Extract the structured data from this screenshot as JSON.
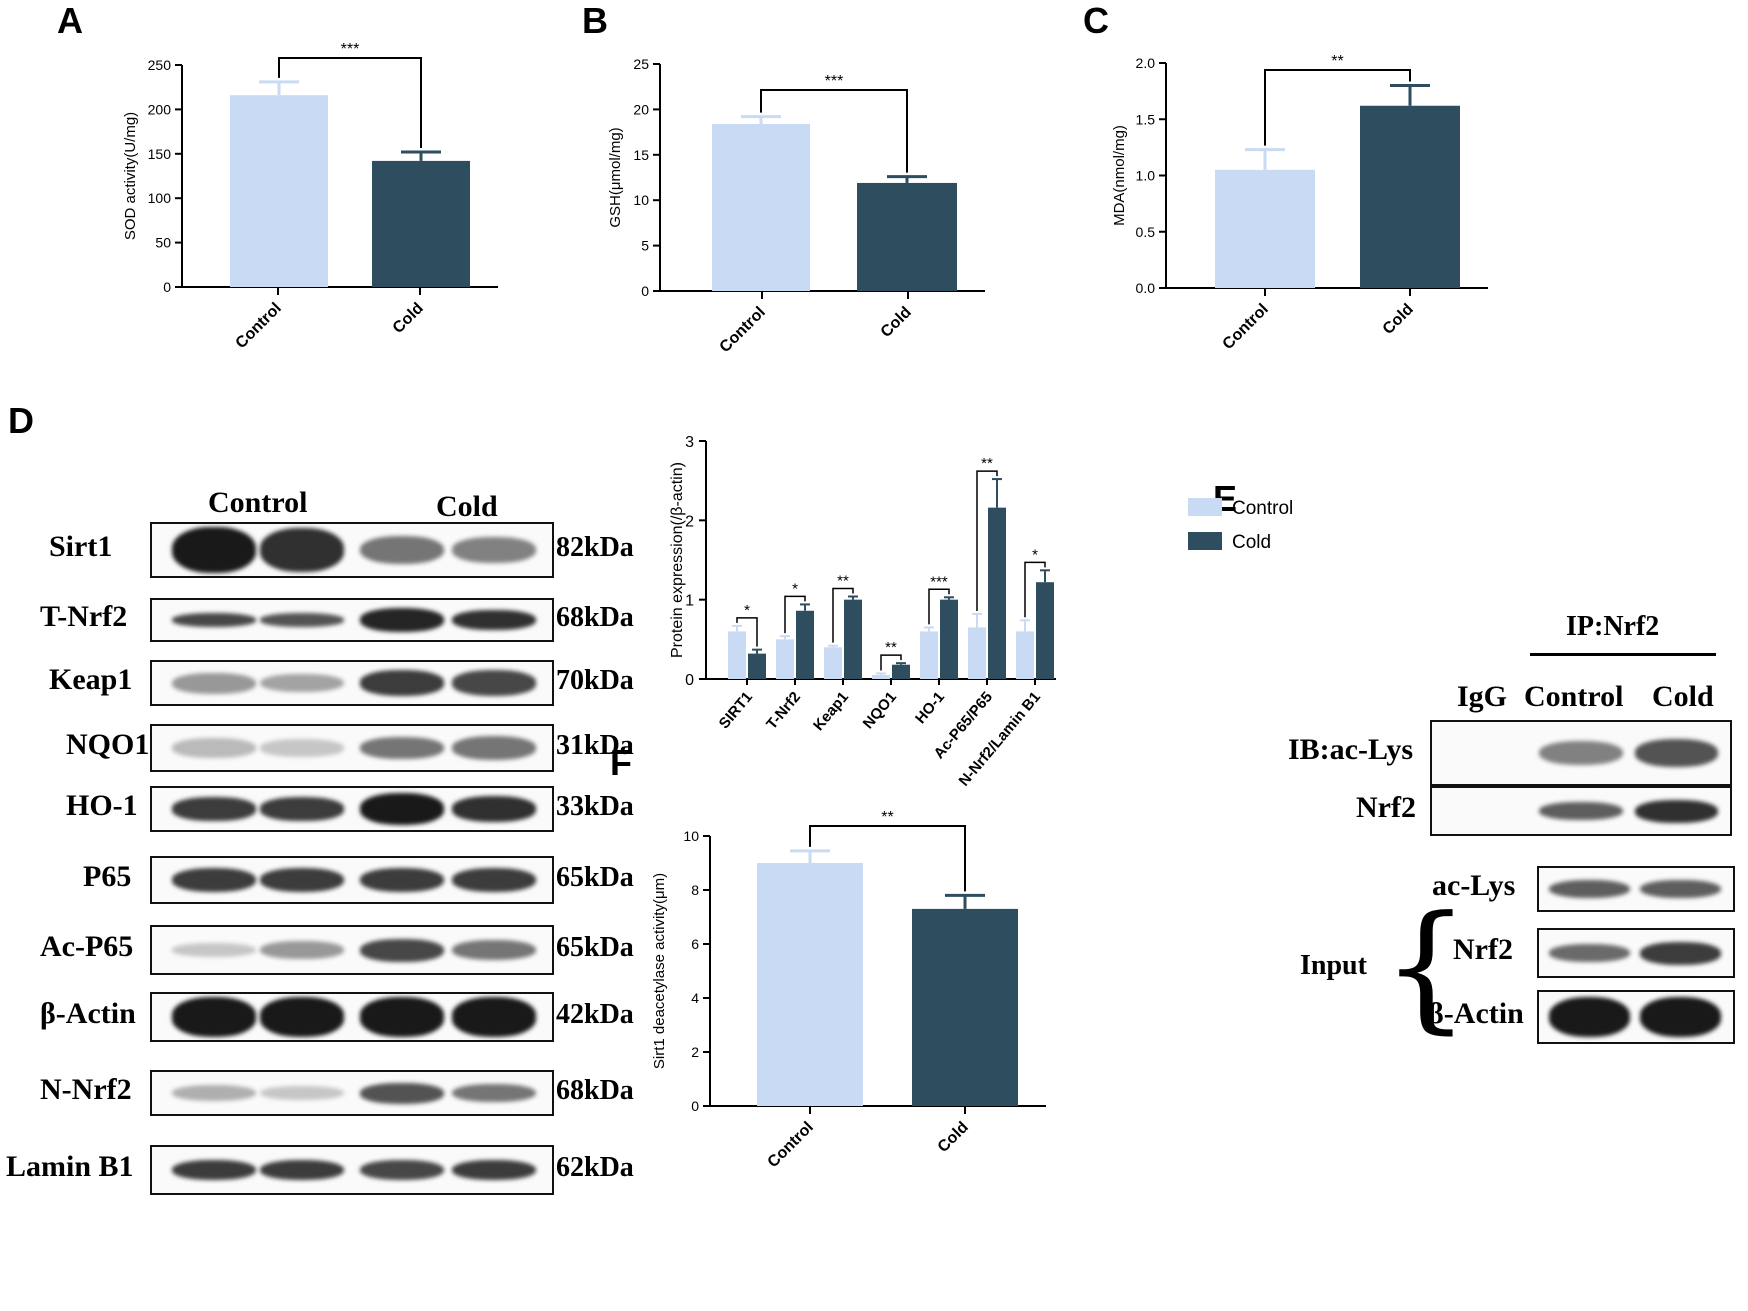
{
  "panels": {
    "A": "A",
    "B": "B",
    "C": "C",
    "D": "D",
    "E": "E",
    "F": "F"
  },
  "colors": {
    "control": "#c9daf5",
    "cold": "#2e4d5e",
    "axis": "#000000"
  },
  "chart_data": [
    {
      "id": "A",
      "type": "bar",
      "categories": [
        "Control",
        "Cold"
      ],
      "values": [
        216,
        142
      ],
      "errors": [
        15,
        10
      ],
      "ylabel": "SOD activity(U/mg)",
      "ylim": [
        0,
        250
      ],
      "yticks": [
        "0",
        "50",
        "100",
        "150",
        "200",
        "250"
      ],
      "significance": "***"
    },
    {
      "id": "B",
      "type": "bar",
      "categories": [
        "Control",
        "Cold"
      ],
      "values": [
        18.4,
        11.9
      ],
      "errors": [
        0.8,
        0.7
      ],
      "ylabel": "GSH(μmol/mg)",
      "ylim": [
        0,
        25
      ],
      "yticks": [
        "0",
        "5",
        "10",
        "15",
        "20",
        "25"
      ],
      "significance": "***"
    },
    {
      "id": "C",
      "type": "bar",
      "categories": [
        "Control",
        "Cold"
      ],
      "values": [
        1.05,
        1.62
      ],
      "errors": [
        0.18,
        0.18
      ],
      "ylabel": "MDA(nmol/mg)",
      "ylim": [
        0,
        2.0
      ],
      "yticks": [
        "0.0",
        "0.5",
        "1.0",
        "1.5",
        "2.0"
      ],
      "significance": "**"
    },
    {
      "id": "D",
      "type": "bar",
      "categories": [
        "SIRT1",
        "T-Nrf2",
        "Keap1",
        "NQO1",
        "HO-1",
        "Ac-P65/P65",
        "N-Nrf2/Lamin B1"
      ],
      "series": [
        {
          "name": "Control",
          "values": [
            0.6,
            0.5,
            0.4,
            0.05,
            0.6,
            0.65,
            0.6
          ],
          "errors": [
            0.07,
            0.04,
            0.02,
            0.02,
            0.05,
            0.17,
            0.14
          ]
        },
        {
          "name": "Cold",
          "values": [
            0.32,
            0.86,
            1.0,
            0.18,
            1.0,
            2.16,
            1.22
          ],
          "errors": [
            0.05,
            0.08,
            0.04,
            0.02,
            0.03,
            0.36,
            0.15
          ]
        }
      ],
      "significance": [
        "*",
        "*",
        "**",
        "**",
        "***",
        "**",
        "*"
      ],
      "ylabel": "Protein  expression(/β-actin)",
      "ylim": [
        0,
        3
      ],
      "yticks": [
        "0",
        "1",
        "2",
        "3"
      ],
      "legend_position": "top-right"
    },
    {
      "id": "F",
      "type": "bar",
      "categories": [
        "Control",
        "Cold"
      ],
      "values": [
        9.0,
        7.3
      ],
      "errors": [
        0.45,
        0.5
      ],
      "ylabel": "Sirt1 deacetylase activity(μm)",
      "ylim": [
        0,
        10
      ],
      "yticks": [
        "0",
        "2",
        "4",
        "6",
        "8",
        "10"
      ],
      "significance": "**"
    }
  ],
  "blot_d": {
    "header": {
      "control": "Control",
      "cold": "Cold"
    },
    "rows": [
      {
        "label": "Sirt1",
        "kda": "82kDa"
      },
      {
        "label": "T-Nrf2",
        "kda": "68kDa"
      },
      {
        "label": "Keap1",
        "kda": "70kDa"
      },
      {
        "label": "NQO1",
        "kda": "31kDa"
      },
      {
        "label": "HO-1",
        "kda": "33kDa"
      },
      {
        "label": "P65",
        "kda": "65kDa"
      },
      {
        "label": "Ac-P65",
        "kda": "65kDa"
      },
      {
        "label": "β-Actin",
        "kda": "42kDa"
      },
      {
        "label": "N-Nrf2",
        "kda": "68kDa"
      },
      {
        "label": "Lamin B1",
        "kda": "62kDa"
      }
    ]
  },
  "blot_e": {
    "ip": "IP:Nrf2",
    "lanes": [
      "IgG",
      "Control",
      "Cold"
    ],
    "ib_rows": [
      "IB:ac-Lys",
      "Nrf2"
    ],
    "input_label": "Input",
    "input_rows": [
      "ac-Lys",
      "Nrf2",
      "β-Actin"
    ]
  }
}
